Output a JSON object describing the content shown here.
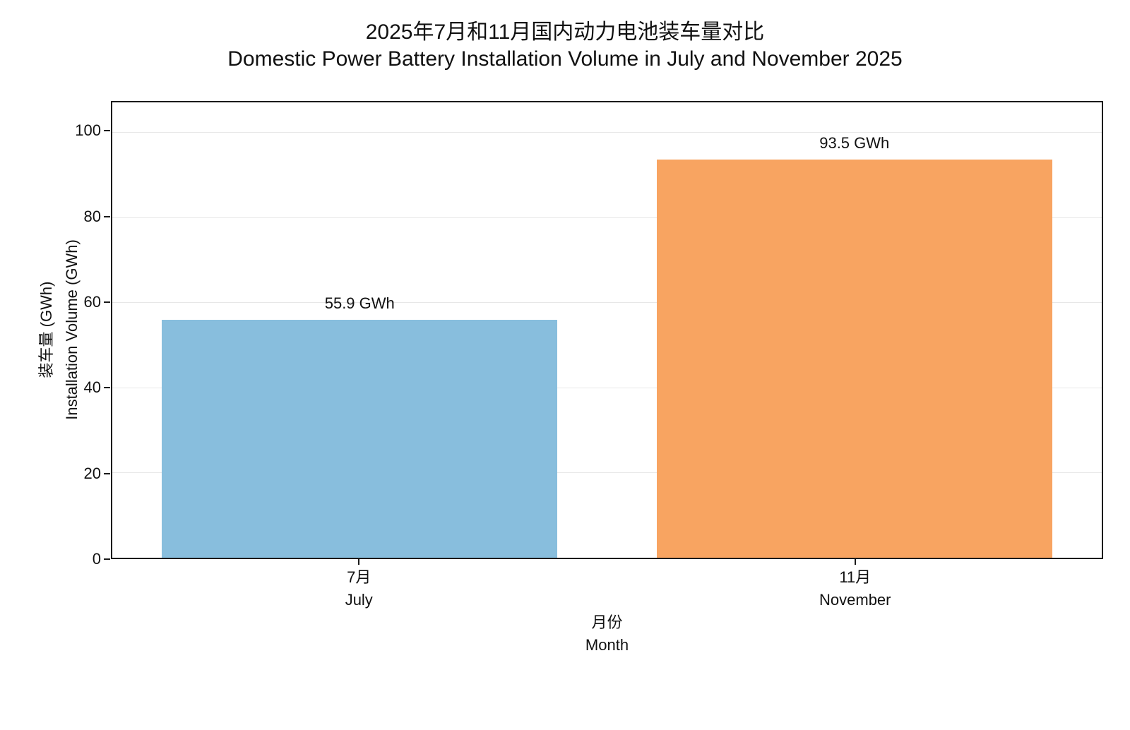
{
  "chart_data": {
    "type": "bar",
    "title_zh": "2025年7月和11月国内动力电池装车量对比",
    "title_en": "Domestic Power Battery Installation Volume in July and November 2025",
    "xlabel_zh": "月份",
    "xlabel_en": "Month",
    "ylabel_zh": "装车量 (GWh)",
    "ylabel_en": "Installation Volume (GWh)",
    "categories": [
      {
        "zh": "7月",
        "en": "July"
      },
      {
        "zh": "11月",
        "en": "November"
      }
    ],
    "values": [
      55.9,
      93.5
    ],
    "bar_labels": [
      "55.9 GWh",
      "93.5 GWh"
    ],
    "bar_colors": [
      "#88bedd",
      "#f8a461"
    ],
    "y_ticks": [
      0,
      20,
      40,
      60,
      80,
      100
    ],
    "ylim": [
      0,
      107
    ],
    "bar_width_fraction": 0.8,
    "grid": "horizontal",
    "gridline_color": "#e7e7e7",
    "axis_color": "#1a1a1a",
    "legend": "none"
  }
}
